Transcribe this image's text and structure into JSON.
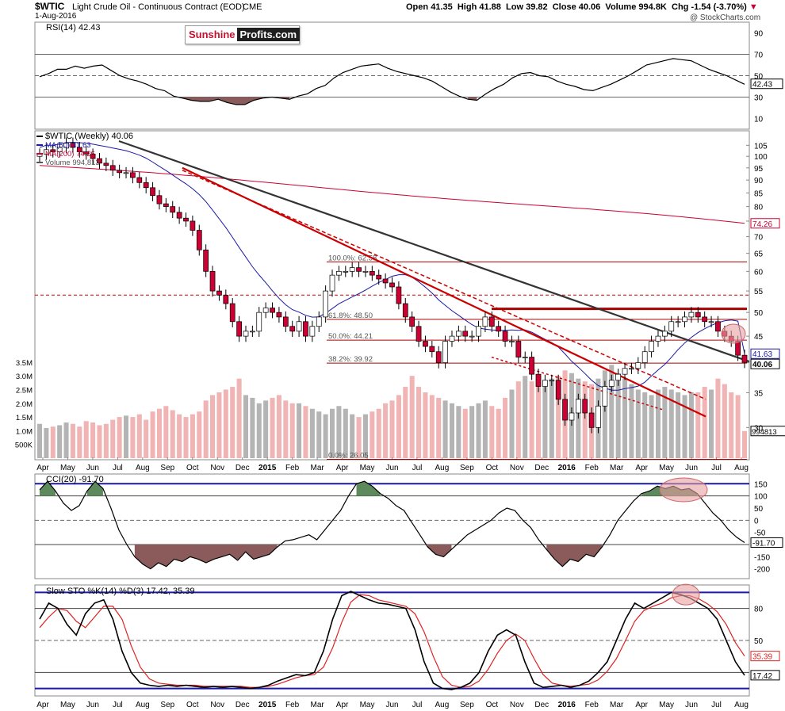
{
  "header": {
    "symbol": "$WTIC",
    "description": "Light Crude Oil - Continuous Contract (EOD)",
    "exchange": "CME",
    "date": "1-Aug-2016",
    "open_label": "Open",
    "open": "41.35",
    "high_label": "High",
    "high": "41.88",
    "low_label": "Low",
    "low": "39.82",
    "close_label": "Close",
    "close": "40.06",
    "volume_label": "Volume",
    "volume": "994.8K",
    "chg_label": "Chg",
    "chg": "-1.54 (-3.70%)",
    "watermark": "@ StockCharts.com"
  },
  "logo": {
    "part1": "Sunshine",
    "part2": "Profits.com"
  },
  "colors": {
    "up": "#ffffff",
    "down": "#cc0033",
    "ma50": "#1a1aa6",
    "ma200": "#cc0033",
    "volume_up": "#b4b4b4",
    "volume_down": "#f0b4b4",
    "trend_black": "#333333",
    "trend_red": "#cc0000",
    "rsi_fill": "#8b5a5a",
    "cci_pos_fill": "#5c8a5c",
    "highlight": "#e8a0a0",
    "blue_line": "#1a1aa6"
  },
  "chart_data": [
    {
      "type": "line",
      "panel": "RSI",
      "legend": "RSI(14) 42.43",
      "current_value": "42.43",
      "ylim": [
        0,
        100
      ],
      "yticks": [
        "90",
        "70",
        "50",
        "30",
        "10"
      ],
      "reference_levels": [
        70,
        50,
        30
      ],
      "values": [
        49,
        52,
        56,
        56,
        59,
        57,
        59,
        60,
        55,
        50,
        47,
        45,
        42,
        38,
        36,
        31,
        29,
        27,
        26,
        26,
        28,
        25,
        23,
        23,
        27,
        29,
        30,
        29,
        28,
        31,
        33,
        38,
        41,
        48,
        53,
        56,
        59,
        60,
        61,
        57,
        54,
        52,
        50,
        48,
        45,
        40,
        35,
        31,
        28,
        27,
        33,
        38,
        42,
        48,
        52,
        53,
        50,
        49,
        45,
        42,
        40,
        37,
        36,
        39,
        42,
        46,
        50,
        55,
        60,
        62,
        64,
        66,
        65,
        64,
        60,
        56,
        53,
        50,
        46,
        42
      ]
    },
    {
      "type": "candlestick",
      "panel": "Price",
      "legend": [
        "$WTIC (Weekly) 40.06",
        "MA(50) 41.63",
        "MA(200) 74.26",
        "Volume 994,813"
      ],
      "ma50_value": "41.63",
      "ma200_value": "74.26",
      "last_close": "40.06",
      "scale": "log",
      "ylim": [
        26,
        112
      ],
      "yticks": [
        "105",
        "100",
        "95",
        "90",
        "85",
        "80",
        "75",
        "70",
        "65",
        "60",
        "55",
        "50",
        "45",
        "40",
        "35",
        "30"
      ],
      "xticks": [
        "Apr",
        "May",
        "Jun",
        "Jul",
        "Aug",
        "Sep",
        "Oct",
        "Nov",
        "Dec",
        "2015",
        "Feb",
        "Mar",
        "Apr",
        "May",
        "Jun",
        "Jul",
        "Aug",
        "Sep",
        "Oct",
        "Nov",
        "Dec",
        "2016",
        "Feb",
        "Mar",
        "Apr",
        "May",
        "Jun",
        "Jul",
        "Aug"
      ],
      "fibonacci": [
        {
          "label": "100.0%: 62.58",
          "value": 62.58
        },
        {
          "label": "61.8%: 48.50",
          "value": 48.5
        },
        {
          "label": "50.0%: 44.21",
          "value": 44.21
        },
        {
          "label": "38.2%: 39.92",
          "value": 39.92
        },
        {
          "label": "0.0%: 26.05",
          "value": 26.05
        }
      ],
      "horizontal_lines": [
        54,
        50.8
      ],
      "close": [
        101,
        103,
        102,
        104,
        106,
        104,
        102,
        101,
        99,
        97,
        96,
        94,
        93,
        93,
        91,
        89,
        87,
        84,
        81,
        80,
        78,
        76,
        75,
        72,
        66,
        60,
        55,
        54,
        52,
        48,
        45,
        46,
        46,
        50,
        51,
        50,
        49,
        47,
        46,
        48,
        45,
        47,
        49,
        55,
        59,
        60,
        60,
        61,
        60,
        60,
        59,
        58,
        57,
        56,
        52,
        49,
        47,
        44,
        43,
        42,
        40,
        44,
        45,
        46,
        45,
        45,
        47,
        49,
        47,
        46,
        44,
        44,
        41,
        41,
        38,
        36,
        37,
        37,
        34,
        31,
        32,
        34,
        32,
        30,
        33,
        36,
        37,
        38,
        39,
        39,
        40,
        42,
        44,
        45,
        46,
        48,
        48,
        49,
        50,
        49,
        48,
        48,
        46,
        45,
        44,
        41.35,
        40.06
      ]
    },
    {
      "type": "bar",
      "panel": "Volume",
      "yticks": [
        "3.5M",
        "3.0M",
        "2.5M",
        "2.0M",
        "1.5M",
        "1.0M",
        "500K"
      ],
      "current_value": "994813",
      "values": [
        1.25,
        1.1,
        1.15,
        1.2,
        1.3,
        1.25,
        1.15,
        1.35,
        1.3,
        1.2,
        1.25,
        1.4,
        1.5,
        1.55,
        1.5,
        1.6,
        1.4,
        1.7,
        1.8,
        1.9,
        1.75,
        1.6,
        1.5,
        1.6,
        1.7,
        2.1,
        2.3,
        2.4,
        2.5,
        2.6,
        2.9,
        2.3,
        2.2,
        2.0,
        2.1,
        2.2,
        2.3,
        2.1,
        2.0,
        2.0,
        1.9,
        1.8,
        1.7,
        1.6,
        1.8,
        1.9,
        1.8,
        1.6,
        1.5,
        1.6,
        1.7,
        1.8,
        2.0,
        2.1,
        2.3,
        2.6,
        3.0,
        2.6,
        2.4,
        2.3,
        2.2,
        2.1,
        2.0,
        1.9,
        1.8,
        1.9,
        2.0,
        2.1,
        1.9,
        1.8,
        2.2,
        2.5,
        2.8,
        3.0,
        2.8,
        2.7,
        2.6,
        2.9,
        3.0,
        3.2,
        3.1,
        2.9,
        2.8,
        2.7,
        2.9,
        3.2,
        3.4,
        3.1,
        2.9,
        2.7,
        2.5,
        2.4,
        2.3,
        2.5,
        2.6,
        2.5,
        2.4,
        2.3,
        2.4,
        2.4,
        2.6,
        2.5,
        2.9,
        2.7,
        2.4,
        2.3,
        0.99
      ]
    },
    {
      "type": "line",
      "panel": "CCI",
      "legend": "CCI(20) -91.70",
      "current_value": "-91.70",
      "ylim": [
        -240,
        190
      ],
      "yticks": [
        "150",
        "100",
        "50",
        "0",
        "-50",
        "-100",
        "-150",
        "-200"
      ],
      "reference_levels": [
        150,
        100,
        -100
      ],
      "values": [
        125,
        160,
        120,
        70,
        40,
        60,
        120,
        160,
        130,
        50,
        -40,
        -100,
        -150,
        -180,
        -200,
        -175,
        -190,
        -160,
        -170,
        -150,
        -160,
        -175,
        -160,
        -150,
        -140,
        -165,
        -130,
        -160,
        -150,
        -140,
        -110,
        -85,
        -80,
        -70,
        -60,
        -80,
        -40,
        0,
        40,
        100,
        150,
        160,
        140,
        110,
        90,
        60,
        40,
        -10,
        -60,
        -110,
        -140,
        -150,
        -120,
        -90,
        -60,
        -40,
        -20,
        0,
        30,
        50,
        40,
        0,
        -30,
        -80,
        -120,
        -160,
        -190,
        -160,
        -170,
        -140,
        -150,
        -110,
        -60,
        0,
        40,
        80,
        110,
        120,
        140,
        130,
        140,
        125,
        130,
        110,
        70,
        30,
        0,
        -40,
        -70,
        -91.7
      ]
    },
    {
      "type": "line",
      "panel": "Slow STO",
      "legend": "Slow STO %K(14) %D(3) 17.42, 35.39",
      "k_value": "17.42",
      "d_value": "35.39",
      "ylim": [
        -2,
        102
      ],
      "yticks": [
        "80",
        "50",
        "20"
      ],
      "reference_levels": [
        95,
        80,
        50,
        20,
        5
      ],
      "k": [
        70,
        85,
        80,
        65,
        55,
        75,
        85,
        88,
        70,
        40,
        20,
        10,
        8,
        7,
        8,
        7,
        8,
        7,
        6,
        7,
        6,
        7,
        6,
        5,
        6,
        8,
        12,
        15,
        18,
        17,
        20,
        40,
        70,
        92,
        96,
        92,
        88,
        85,
        84,
        82,
        80,
        60,
        30,
        10,
        5,
        4,
        6,
        10,
        20,
        40,
        55,
        60,
        55,
        30,
        10,
        6,
        7,
        8,
        6,
        8,
        12,
        20,
        30,
        50,
        70,
        85,
        80,
        85,
        90,
        95,
        93,
        90,
        85,
        80,
        70,
        50,
        30,
        17.42
      ],
      "d": [
        62,
        72,
        80,
        78,
        68,
        62,
        72,
        82,
        82,
        70,
        45,
        25,
        14,
        10,
        9,
        8,
        8,
        8,
        7,
        7,
        7,
        7,
        7,
        6,
        6,
        7,
        9,
        12,
        15,
        17,
        18,
        25,
        43,
        67,
        86,
        93,
        92,
        88,
        86,
        84,
        82,
        75,
        58,
        35,
        16,
        8,
        6,
        7,
        12,
        23,
        38,
        50,
        56,
        50,
        33,
        18,
        10,
        8,
        7,
        8,
        9,
        13,
        21,
        33,
        50,
        68,
        78,
        82,
        85,
        90,
        92,
        92,
        89,
        84,
        77,
        65,
        48,
        35.39
      ]
    }
  ]
}
